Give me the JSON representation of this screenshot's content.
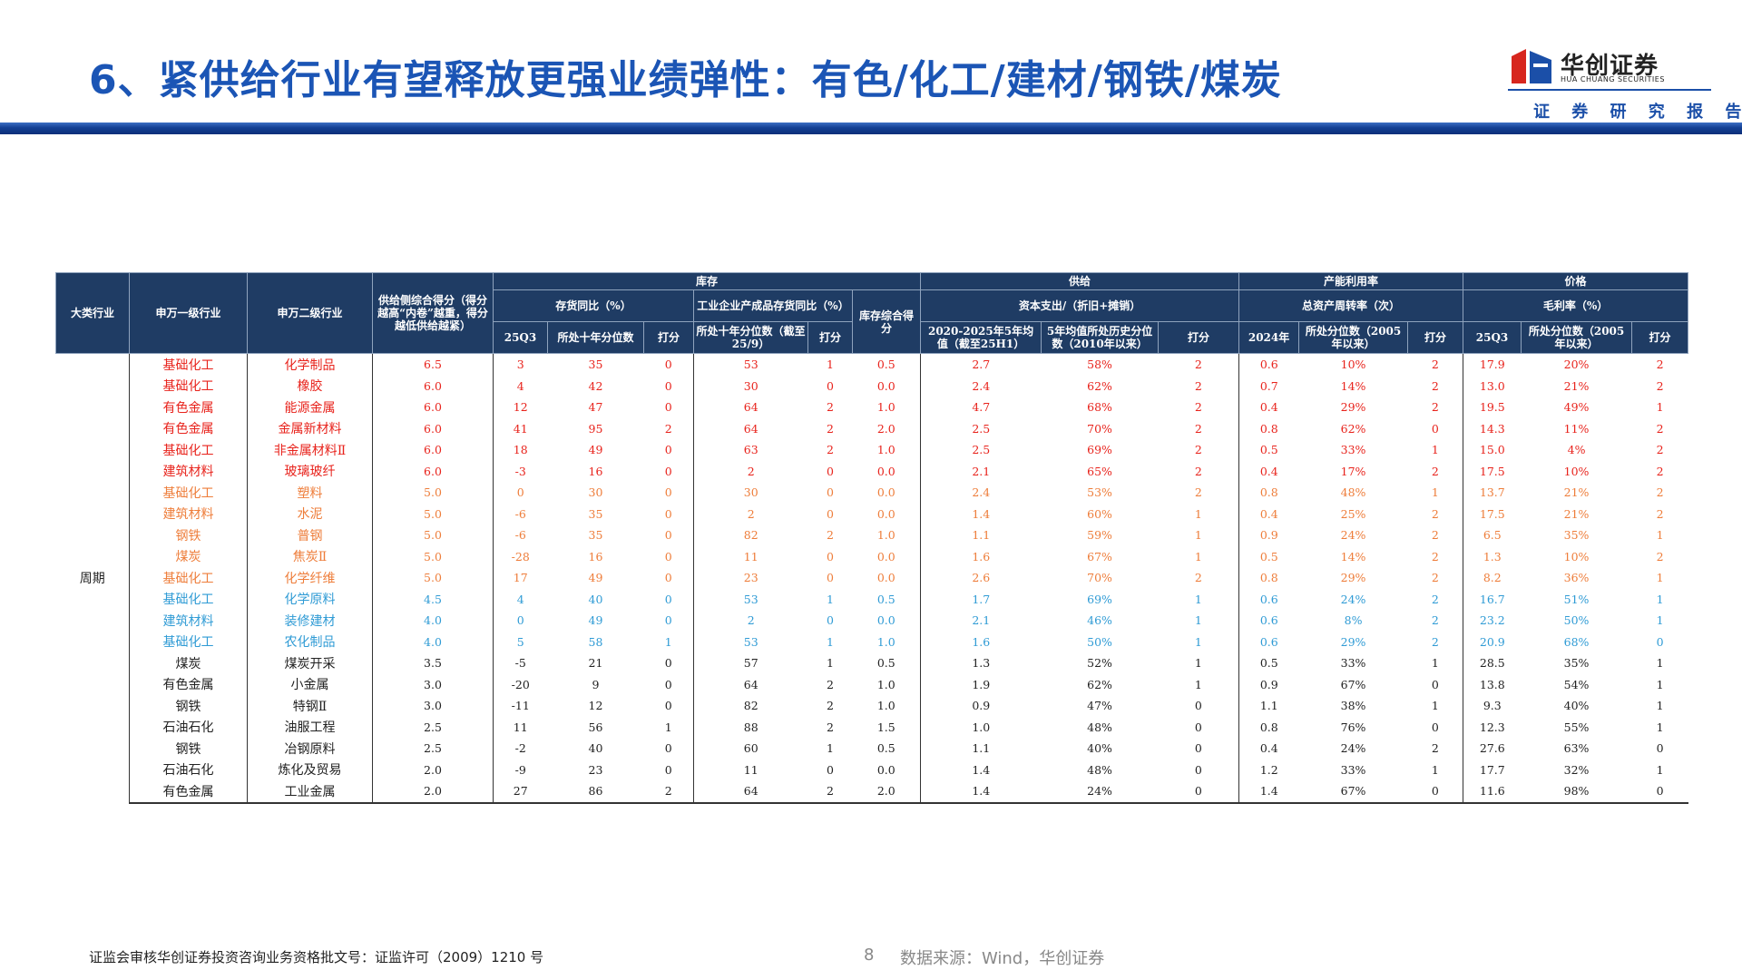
{
  "header": {
    "title": "6、紧供给行业有望释放更强业绩弹性：有色/化工/建材/钢铁/煤炭",
    "logo_name": "华创证券",
    "logo_english": "HUA CHUANG SECURITIES",
    "logo_subtitle": "证 券 研 究 报 告"
  },
  "table": {
    "fixed_headers": [
      "大类行业",
      "申万一级行业",
      "申万二级行业",
      "供给侧综合得分（得分越高“内卷”越重，得分越低供给越紧）"
    ],
    "group_headers": [
      "库存",
      "供给",
      "产能利用率",
      "价格"
    ],
    "sub_headers": [
      "存货同比（%）",
      "工业企业产成品存货同比（%）",
      "库存综合得分",
      "资本支出/（折旧+摊销）",
      "总资产周转率（次）",
      "毛利率（%）"
    ],
    "leaf_headers": [
      "25Q3",
      "所处十年分位数",
      "打分",
      "所处十年分位数（截至25/9）",
      "打分",
      "2020-2025年5年均值（截至25H1）",
      "5年均值所处历史分位数（2010年以来）",
      "打分",
      "2024年",
      "所处分位数（2005年以来）",
      "打分",
      "25Q3",
      "所处分位数（2005年以来）",
      "打分"
    ],
    "category": "周期",
    "rows": [
      [
        "基础化工",
        "化学制品",
        "6.5",
        "3",
        "35",
        "0",
        "53",
        "1",
        "0.5",
        "2.7",
        "58%",
        "2",
        "0.6",
        "10%",
        "2",
        "17.9",
        "20%",
        "2"
      ],
      [
        "基础化工",
        "橡胶",
        "6.0",
        "4",
        "42",
        "0",
        "30",
        "0",
        "0.0",
        "2.4",
        "62%",
        "2",
        "0.7",
        "14%",
        "2",
        "13.0",
        "21%",
        "2"
      ],
      [
        "有色金属",
        "能源金属",
        "6.0",
        "12",
        "47",
        "0",
        "64",
        "2",
        "1.0",
        "4.7",
        "68%",
        "2",
        "0.4",
        "29%",
        "2",
        "19.5",
        "49%",
        "1"
      ],
      [
        "有色金属",
        "金属新材料",
        "6.0",
        "41",
        "95",
        "2",
        "64",
        "2",
        "2.0",
        "2.5",
        "70%",
        "2",
        "0.8",
        "62%",
        "0",
        "14.3",
        "11%",
        "2"
      ],
      [
        "基础化工",
        "非金属材料Ⅱ",
        "6.0",
        "18",
        "49",
        "0",
        "63",
        "2",
        "1.0",
        "2.5",
        "69%",
        "2",
        "0.5",
        "33%",
        "1",
        "15.0",
        "4%",
        "2"
      ],
      [
        "建筑材料",
        "玻璃玻纤",
        "6.0",
        "-3",
        "16",
        "0",
        "2",
        "0",
        "0.0",
        "2.1",
        "65%",
        "2",
        "0.4",
        "17%",
        "2",
        "17.5",
        "10%",
        "2"
      ],
      [
        "基础化工",
        "塑料",
        "5.0",
        "0",
        "30",
        "0",
        "30",
        "0",
        "0.0",
        "2.4",
        "53%",
        "2",
        "0.8",
        "48%",
        "1",
        "13.7",
        "21%",
        "2"
      ],
      [
        "建筑材料",
        "水泥",
        "5.0",
        "-6",
        "35",
        "0",
        "2",
        "0",
        "0.0",
        "1.4",
        "60%",
        "1",
        "0.4",
        "25%",
        "2",
        "17.5",
        "21%",
        "2"
      ],
      [
        "钢铁",
        "普钢",
        "5.0",
        "-6",
        "35",
        "0",
        "82",
        "2",
        "1.0",
        "1.1",
        "59%",
        "1",
        "0.9",
        "24%",
        "2",
        "6.5",
        "35%",
        "1"
      ],
      [
        "煤炭",
        "焦炭Ⅱ",
        "5.0",
        "-28",
        "16",
        "0",
        "11",
        "0",
        "0.0",
        "1.6",
        "67%",
        "1",
        "0.5",
        "14%",
        "2",
        "1.3",
        "10%",
        "2"
      ],
      [
        "基础化工",
        "化学纤维",
        "5.0",
        "17",
        "49",
        "0",
        "23",
        "0",
        "0.0",
        "2.6",
        "70%",
        "2",
        "0.8",
        "29%",
        "2",
        "8.2",
        "36%",
        "1"
      ],
      [
        "基础化工",
        "化学原料",
        "4.5",
        "4",
        "40",
        "0",
        "53",
        "1",
        "0.5",
        "1.7",
        "69%",
        "1",
        "0.6",
        "24%",
        "2",
        "16.7",
        "51%",
        "1"
      ],
      [
        "建筑材料",
        "装修建材",
        "4.0",
        "0",
        "49",
        "0",
        "2",
        "0",
        "0.0",
        "2.1",
        "46%",
        "1",
        "0.6",
        "8%",
        "2",
        "23.2",
        "50%",
        "1"
      ],
      [
        "基础化工",
        "农化制品",
        "4.0",
        "5",
        "58",
        "1",
        "53",
        "1",
        "1.0",
        "1.6",
        "50%",
        "1",
        "0.6",
        "29%",
        "2",
        "20.9",
        "68%",
        "0"
      ],
      [
        "煤炭",
        "煤炭开采",
        "3.5",
        "-5",
        "21",
        "0",
        "57",
        "1",
        "0.5",
        "1.3",
        "52%",
        "1",
        "0.5",
        "33%",
        "1",
        "28.5",
        "35%",
        "1"
      ],
      [
        "有色金属",
        "小金属",
        "3.0",
        "-20",
        "9",
        "0",
        "64",
        "2",
        "1.0",
        "1.9",
        "62%",
        "1",
        "0.9",
        "67%",
        "0",
        "13.8",
        "54%",
        "1"
      ],
      [
        "钢铁",
        "特钢Ⅱ",
        "3.0",
        "-11",
        "12",
        "0",
        "82",
        "2",
        "1.0",
        "0.9",
        "47%",
        "0",
        "1.1",
        "38%",
        "1",
        "9.3",
        "40%",
        "1"
      ],
      [
        "石油石化",
        "油服工程",
        "2.5",
        "11",
        "56",
        "1",
        "88",
        "2",
        "1.5",
        "1.0",
        "48%",
        "0",
        "0.8",
        "76%",
        "0",
        "12.3",
        "55%",
        "1"
      ],
      [
        "钢铁",
        "冶钢原料",
        "2.5",
        "-2",
        "40",
        "0",
        "60",
        "1",
        "0.5",
        "1.1",
        "40%",
        "0",
        "0.4",
        "24%",
        "2",
        "27.6",
        "63%",
        "0"
      ],
      [
        "石油石化",
        "炼化及贸易",
        "2.0",
        "-9",
        "23",
        "0",
        "11",
        "0",
        "0.0",
        "1.4",
        "48%",
        "0",
        "1.2",
        "33%",
        "1",
        "17.7",
        "32%",
        "1"
      ],
      [
        "有色金属",
        "工业金属",
        "2.0",
        "27",
        "86",
        "2",
        "64",
        "2",
        "2.0",
        "1.4",
        "24%",
        "0",
        "1.4",
        "67%",
        "0",
        "11.6",
        "98%",
        "0"
      ]
    ],
    "row_colors": [
      "#e8231c",
      "#e8231c",
      "#e8231c",
      "#e8231c",
      "#e8231c",
      "#e8231c",
      "#ee7d3a",
      "#ee7d3a",
      "#ee7d3a",
      "#ee7d3a",
      "#ee7d3a",
      "#2f9bd5",
      "#2f9bd5",
      "#2f9bd5",
      "#222222",
      "#222222",
      "#222222",
      "#222222",
      "#222222",
      "#222222",
      "#222222"
    ]
  },
  "footer": {
    "license": "证监会审核华创证券投资咨询业务资格批文号：证监许可（2009）1210 号",
    "page": "8",
    "source": "数据来源：Wind，华创证券"
  }
}
